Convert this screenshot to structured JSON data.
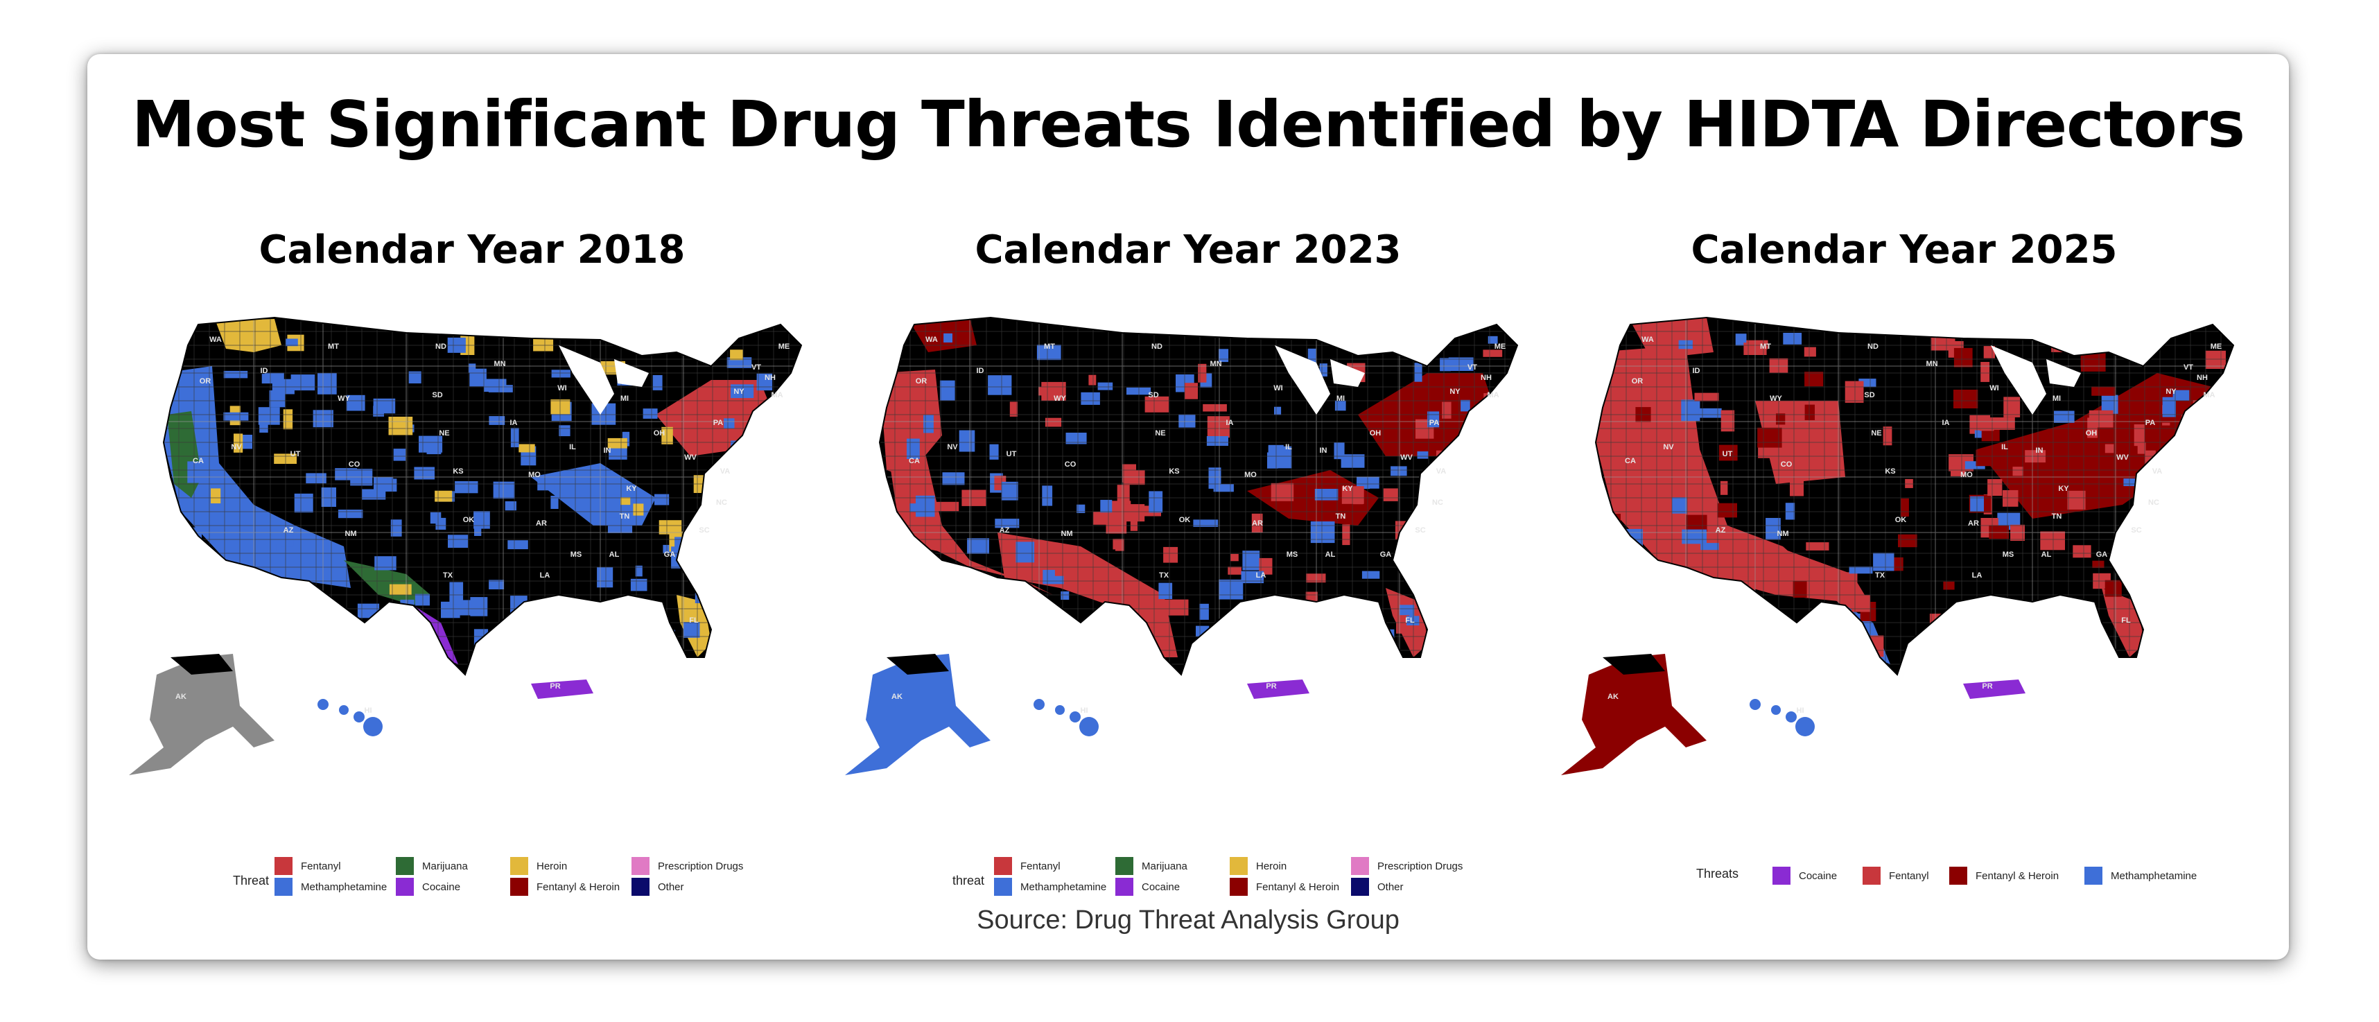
{
  "title": "Most Significant Drug Threats Identified by HIDTA Directors",
  "source": "Source: Drug Threat Analysis Group",
  "colors": {
    "fentanyl": "#c8373c",
    "methamphetamine": "#3e6fd8",
    "marijuana": "#2e6b35",
    "cocaine": "#8a2bd3",
    "heroin": "#e2b83b",
    "fentanyl_heroin": "#8b0000",
    "prescription_drugs": "#e07ac4",
    "other": "#0a0a6b",
    "none": "#000000",
    "alaska_gray": "#8a8a8a"
  },
  "panels": [
    {
      "title": "Calendar Year 2018",
      "legend_title": "Threat",
      "legend": [
        {
          "label": "Fentanyl",
          "color": "#c8373c"
        },
        {
          "label": "Methamphetamine",
          "color": "#3e6fd8"
        },
        {
          "label": "Marijuana",
          "color": "#2e6b35"
        },
        {
          "label": "Cocaine",
          "color": "#8a2bd3"
        },
        {
          "label": "Heroin",
          "color": "#e2b83b"
        },
        {
          "label": "Fentanyl & Heroin",
          "color": "#8b0000"
        },
        {
          "label": "Prescription Drugs",
          "color": "#e07ac4"
        },
        {
          "label": "Other",
          "color": "#0a0a6b"
        }
      ],
      "regions": {
        "west": "#3e6fd8",
        "coast": "#2e6b35",
        "northwest": "#e2b83b",
        "south_border": "#2e6b35",
        "texas_tip": "#8a2bd3",
        "northeast": "#c8373c",
        "florida": "#e2b83b",
        "alaska": "#8a8a8a",
        "hawaii": "#3e6fd8",
        "pr": "#8a2bd3"
      }
    },
    {
      "title": "Calendar Year 2023",
      "legend_title": "threat",
      "legend": [
        {
          "label": "Fentanyl",
          "color": "#c8373c"
        },
        {
          "label": "Methamphetamine",
          "color": "#3e6fd8"
        },
        {
          "label": "Marijuana",
          "color": "#2e6b35"
        },
        {
          "label": "Cocaine",
          "color": "#8a2bd3"
        },
        {
          "label": "Heroin",
          "color": "#e2b83b"
        },
        {
          "label": "Fentanyl & Heroin",
          "color": "#8b0000"
        },
        {
          "label": "Prescription Drugs",
          "color": "#e07ac4"
        },
        {
          "label": "Other",
          "color": "#0a0a6b"
        }
      ],
      "regions": {
        "west": "#c8373c",
        "coast": "#c8373c",
        "northwest": "#8b0000",
        "south_border": "#c8373c",
        "texas_tip": "#c8373c",
        "northeast": "#8b0000",
        "florida": "#c8373c",
        "alaska": "#3e6fd8",
        "hawaii": "#3e6fd8",
        "pr": "#8a2bd3"
      }
    },
    {
      "title": "Calendar Year 2025",
      "legend_title": "Threats",
      "legend": [
        {
          "label": "Cocaine",
          "color": "#8a2bd3"
        },
        {
          "label": "Fentanyl",
          "color": "#c8373c"
        },
        {
          "label": "Fentanyl & Heroin",
          "color": "#8b0000"
        },
        {
          "label": "Methamphetamine",
          "color": "#3e6fd8"
        }
      ],
      "regions": {
        "west": "#c8373c",
        "coast": "#c8373c",
        "northwest": "#c8373c",
        "south_border": "#c8373c",
        "texas_tip": "#3e6fd8",
        "northeast": "#8b0000",
        "florida": "#c8373c",
        "alaska": "#8b0000",
        "hawaii": "#3e6fd8",
        "pr": "#8a2bd3"
      }
    }
  ],
  "state_labels": [
    "WA",
    "OR",
    "CA",
    "NV",
    "ID",
    "MT",
    "WY",
    "UT",
    "CO",
    "AZ",
    "NM",
    "ND",
    "SD",
    "NE",
    "KS",
    "OK",
    "TX",
    "MN",
    "IA",
    "MO",
    "AR",
    "LA",
    "WI",
    "IL",
    "MS",
    "MI",
    "IN",
    "KY",
    "TN",
    "AL",
    "OH",
    "GA",
    "FL",
    "SC",
    "NC",
    "VA",
    "WV",
    "PA",
    "NY",
    "ME",
    "VT",
    "NH",
    "MA",
    "AK",
    "HI",
    "PR"
  ]
}
